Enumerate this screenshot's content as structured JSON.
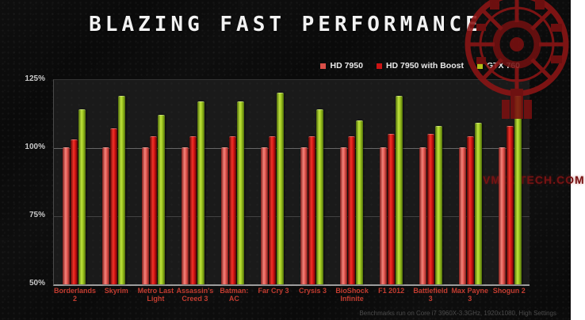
{
  "title": "BLAZING FAST PERFORMANCE",
  "watermark": "VMODTECH.COM",
  "footnote": "Benchmarks run on Core i7 3960X-3.3GHz,  1920x1080,  High Settings",
  "colors": {
    "background": "#0a0a0a",
    "plot_background": "#1a1a1a",
    "title_text": "#f2f2f2",
    "x_label_text": "#c33c30",
    "y_label_text": "#c9c9c9",
    "watermark_red": "#761313",
    "emblem_red": "#8c1515"
  },
  "chart_data": {
    "type": "bar",
    "title": "BLAZING FAST PERFORMANCE",
    "xlabel": "",
    "ylabel": "",
    "ylim": [
      50,
      125
    ],
    "yticks": [
      {
        "value": 125,
        "label": "125%"
      },
      {
        "value": 100,
        "label": "100%"
      },
      {
        "value": 75,
        "label": "75%"
      },
      {
        "value": 50,
        "label": "50%"
      }
    ],
    "grid": true,
    "legend_position": "top-right",
    "categories": [
      "Borderlands 2",
      "Skyrim",
      "Metro Last Light",
      "Assassin's Creed 3",
      "Batman: AC",
      "Far Cry 3",
      "Crysis 3",
      "BioShock Infinite",
      "F1 2012",
      "Battlefield 3",
      "Max Payne 3",
      "Shogun 2"
    ],
    "series": [
      {
        "name": "HD 7950",
        "color": "#e45750",
        "color_light": "#f4837b",
        "color_dark": "#7e1e1a",
        "legend_swatch": "#da4f48",
        "values": [
          100,
          100,
          100,
          100,
          100,
          100,
          100,
          100,
          100,
          100,
          100,
          100
        ]
      },
      {
        "name": "HD 7950 with Boost",
        "color": "#d41414",
        "color_light": "#f03328",
        "color_dark": "#5c0606",
        "legend_swatch": "#cc1414",
        "values": [
          103,
          107,
          104,
          104,
          104,
          104,
          104,
          104,
          105,
          105,
          104,
          108
        ]
      },
      {
        "name": "GTX 760",
        "color": "#9cc41e",
        "color_light": "#bfe23c",
        "color_dark": "#4f6c0b",
        "legend_swatch": "#b4be16",
        "values": [
          114,
          119,
          112,
          117,
          117,
          120,
          114,
          110,
          119,
          108,
          109,
          119
        ]
      }
    ]
  }
}
